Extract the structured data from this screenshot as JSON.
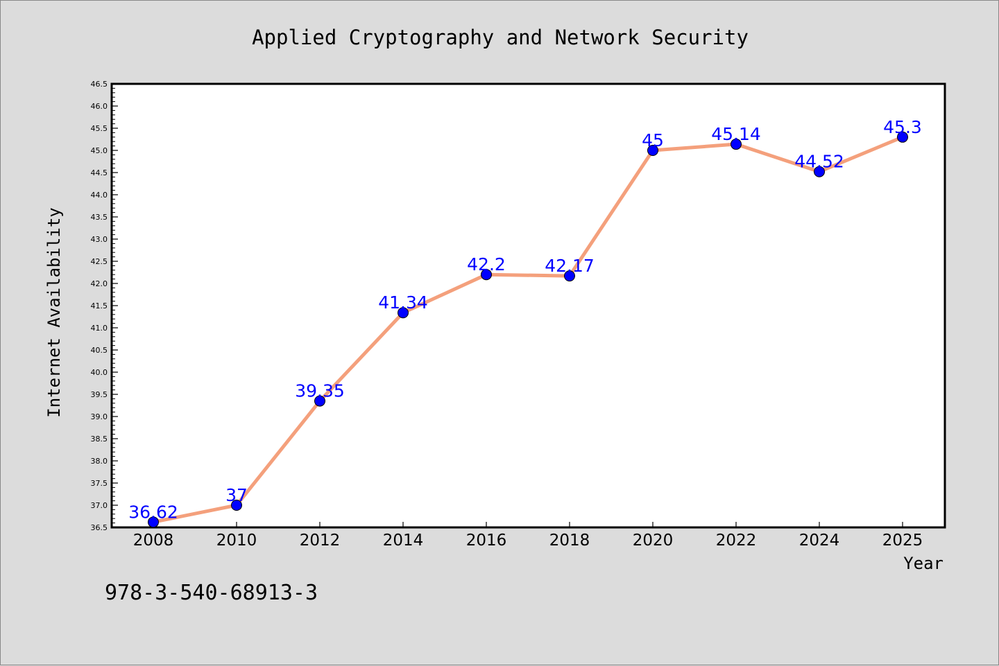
{
  "chart_data": {
    "type": "line",
    "title": "Applied Cryptography and Network Security",
    "xlabel": "Year",
    "ylabel": "Internet Availability",
    "categories": [
      "2008",
      "2010",
      "2012",
      "2014",
      "2016",
      "2018",
      "2020",
      "2022",
      "2024",
      "2025"
    ],
    "series": [
      {
        "values": [
          36.62,
          37,
          39.35,
          41.34,
          42.2,
          42.17,
          45,
          45.14,
          44.52,
          45.3
        ]
      }
    ],
    "data_labels": [
      "36.62",
      "37",
      "39.35",
      "41.34",
      "42.2",
      "42.17",
      "45",
      "45.14",
      "44.52",
      "45.3"
    ],
    "ylim": [
      36.5,
      46.5
    ],
    "yticks": [
      "36.5",
      "37.0",
      "37.5",
      "38.0",
      "38.5",
      "39.0",
      "39.5",
      "40.0",
      "40.5",
      "41.0",
      "41.5",
      "42.0",
      "42.5",
      "43.0",
      "43.5",
      "44.0",
      "44.5",
      "45.0",
      "45.5",
      "46.0",
      "46.5"
    ],
    "grid": false,
    "legend": "none",
    "line_color": "#f4a07c",
    "marker_color": "#0000ff",
    "label_color": "#0000ff",
    "background": "#dcdcdc",
    "plot_background": "#ffffff"
  },
  "footer": {
    "isbn": "978-3-540-68913-3"
  }
}
